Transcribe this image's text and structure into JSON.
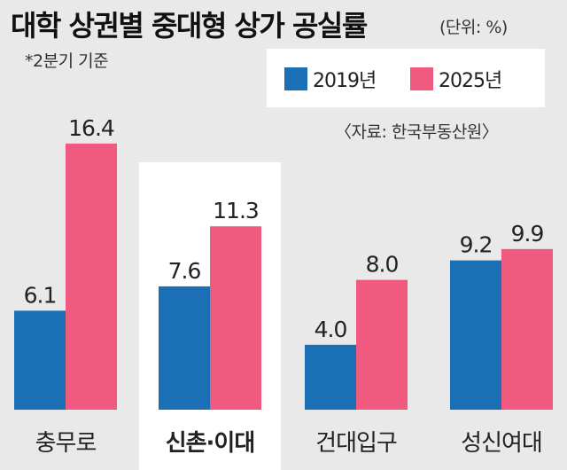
{
  "title": "대학 상권별 중대형 상가 공실률",
  "unit_label": "(단위: %)",
  "note": "*2분기 기준",
  "source": "〈자료: 한국부동산원〉",
  "colors": {
    "series_2019": "#1b6fb4",
    "series_2025": "#f05a7e",
    "highlight_box": "#ffffff",
    "background": "#e9e9ea"
  },
  "chart_data": {
    "type": "bar",
    "title": "대학 상권별 중대형 상가 공실률",
    "xlabel": "",
    "ylabel": "",
    "categories": [
      "충무로",
      "신촌·이대",
      "건대입구",
      "성신여대"
    ],
    "highlighted_category": "신촌·이대",
    "series": [
      {
        "name": "2019년",
        "values": [
          6.1,
          7.6,
          4.0,
          9.2
        ],
        "labels": [
          "6.1",
          "7.6",
          "4.0",
          "9.2"
        ]
      },
      {
        "name": "2025년",
        "values": [
          16.4,
          11.3,
          8.0,
          9.9
        ],
        "labels": [
          "16.4",
          "11.3",
          "8.0",
          "9.9"
        ]
      }
    ],
    "ylim": [
      0,
      16.4
    ],
    "grid": false,
    "legend_position": "top-right"
  }
}
